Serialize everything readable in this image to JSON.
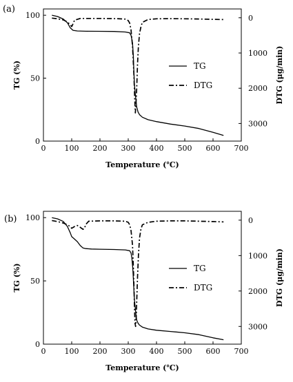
{
  "chart_data": [
    {
      "type": "line",
      "panel_label": "(a)",
      "xlabel": "Temperature (℃)",
      "ylabel": "TG (%)",
      "y2label": "DTG (μg/min)",
      "xlim": [
        0,
        700
      ],
      "ylim": [
        0,
        105
      ],
      "y2lim": [
        3500,
        -250
      ],
      "y2_reversed": true,
      "xticks": [
        0,
        100,
        200,
        300,
        400,
        500,
        600,
        700
      ],
      "yticks": [
        0,
        50,
        100
      ],
      "y2ticks": [
        0,
        1000,
        2000,
        3000
      ],
      "grid": false,
      "legend_position": "center-right",
      "series": [
        {
          "name": "TG",
          "axis": "left",
          "style": "solid",
          "x": [
            30,
            50,
            70,
            85,
            95,
            105,
            120,
            150,
            200,
            250,
            290,
            305,
            310,
            315,
            318,
            320,
            322,
            325,
            328,
            330,
            335,
            340,
            350,
            370,
            400,
            450,
            500,
            550,
            600,
            637
          ],
          "y": [
            100,
            99,
            97,
            94,
            90,
            88,
            87.5,
            87.3,
            87.2,
            87.1,
            86.7,
            86,
            84,
            78,
            68,
            55,
            45,
            37,
            31,
            27,
            23,
            21,
            19,
            17,
            15.5,
            13.5,
            12,
            10,
            7,
            4.5
          ]
        },
        {
          "name": "DTG",
          "axis": "right",
          "style": "dashdot",
          "x": [
            30,
            50,
            70,
            85,
            95,
            100,
            105,
            110,
            130,
            200,
            260,
            290,
            300,
            305,
            310,
            315,
            320,
            323,
            325,
            327,
            330,
            333,
            336,
            340,
            345,
            350,
            370,
            400,
            450,
            500,
            550,
            600,
            637
          ],
          "y": [
            10,
            30,
            60,
            120,
            200,
            250,
            170,
            70,
            20,
            20,
            25,
            40,
            80,
            150,
            350,
            800,
            1600,
            2300,
            2700,
            2500,
            2000,
            1300,
            800,
            450,
            250,
            130,
            50,
            30,
            25,
            30,
            35,
            45,
            50
          ]
        }
      ],
      "legend": [
        {
          "name": "TG",
          "style": "solid"
        },
        {
          "name": "DTG",
          "style": "dashdot"
        }
      ]
    },
    {
      "type": "line",
      "panel_label": "(b)",
      "xlabel": "Temperature (℃)",
      "ylabel": "TG (%)",
      "y2label": "DTG (μg/min)",
      "xlim": [
        0,
        700
      ],
      "ylim": [
        0,
        105
      ],
      "y2lim": [
        3500,
        -250
      ],
      "y2_reversed": true,
      "xticks": [
        0,
        100,
        200,
        300,
        400,
        500,
        600,
        700
      ],
      "yticks": [
        0,
        50,
        100
      ],
      "y2ticks": [
        0,
        1000,
        2000,
        3000
      ],
      "grid": false,
      "legend_position": "center-right",
      "series": [
        {
          "name": "TG",
          "axis": "left",
          "style": "solid",
          "x": [
            30,
            50,
            70,
            85,
            95,
            100,
            110,
            120,
            130,
            140,
            150,
            170,
            200,
            250,
            290,
            305,
            310,
            313,
            316,
            318,
            320,
            322,
            325,
            328,
            330,
            335,
            340,
            350,
            370,
            400,
            450,
            500,
            550,
            600,
            637
          ],
          "y": [
            100,
            99,
            97,
            93,
            88,
            85,
            83,
            81,
            78,
            76,
            75.5,
            75.2,
            75,
            74.8,
            74.5,
            73.8,
            72,
            68,
            60,
            52,
            43,
            35,
            28,
            22,
            19,
            16.5,
            15,
            13.5,
            12,
            11,
            10,
            9,
            7.5,
            5,
            3.5
          ]
        },
        {
          "name": "DTG",
          "axis": "right",
          "style": "dashdot",
          "x": [
            30,
            50,
            70,
            85,
            95,
            100,
            110,
            120,
            130,
            140,
            145,
            150,
            160,
            200,
            250,
            290,
            300,
            305,
            310,
            315,
            318,
            320,
            322,
            324,
            326,
            328,
            330,
            333,
            336,
            340,
            345,
            350,
            370,
            400,
            450,
            500,
            550,
            600,
            637
          ],
          "y": [
            10,
            40,
            80,
            130,
            180,
            230,
            180,
            150,
            200,
            260,
            230,
            120,
            30,
            20,
            20,
            30,
            60,
            130,
            300,
            700,
            1300,
            1800,
            2400,
            2900,
            3000,
            2800,
            2300,
            1600,
            1000,
            500,
            250,
            130,
            60,
            30,
            20,
            20,
            30,
            40,
            50
          ]
        }
      ],
      "legend": [
        {
          "name": "TG",
          "style": "solid"
        },
        {
          "name": "DTG",
          "style": "dashdot"
        }
      ]
    }
  ]
}
